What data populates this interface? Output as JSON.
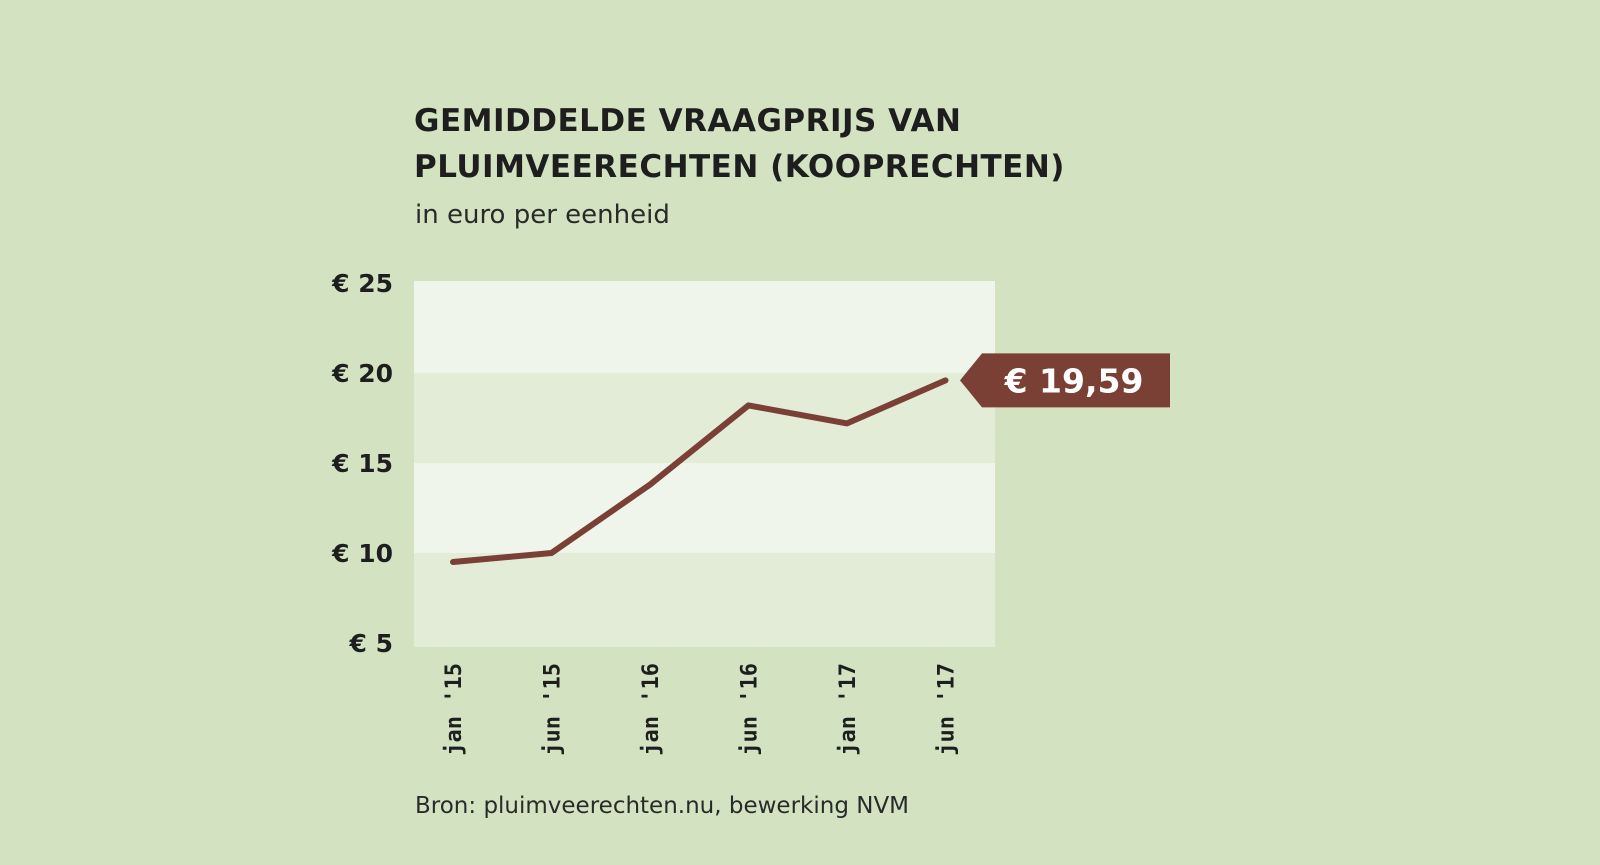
{
  "chart_data": {
    "type": "line",
    "title_lines": [
      "GEMIDDELDE VRAAGPRIJS VAN",
      "PLUIMVEERECHTEN (KOOPRECHTEN)"
    ],
    "subtitle": "in euro per eenheid",
    "source": "Bron: pluimveerechten.nu, bewerking NVM",
    "categories": [
      "jan '15",
      "jun '15",
      "jan '16",
      "jun '16",
      "jan '17",
      "jun '17"
    ],
    "values": [
      9.5,
      10.0,
      13.8,
      18.2,
      17.2,
      19.59
    ],
    "ylim": [
      5,
      25
    ],
    "y_ticks": [
      {
        "value": 25,
        "label": "€ 25"
      },
      {
        "value": 20,
        "label": "€ 20"
      },
      {
        "value": 15,
        "label": "€ 15"
      },
      {
        "value": 10,
        "label": "€ 10"
      },
      {
        "value": 5,
        "label": "€ 5"
      }
    ],
    "callout_label": "€ 19,59",
    "grid": "alternating bands",
    "colors": {
      "background": "#d3e3c2",
      "band_light": "#eff5ea",
      "band_dark": "#e2ecd7",
      "line": "#7a4035",
      "callout": "#7a4035"
    }
  }
}
